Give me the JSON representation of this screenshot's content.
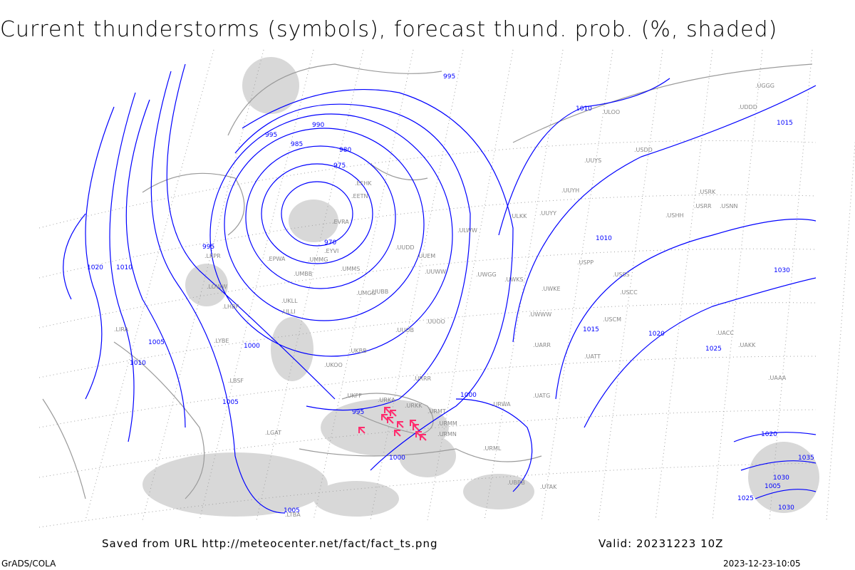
{
  "title": "Current thunderstorms (symbols), forecast thund. prob. (%, shaded)",
  "footer": {
    "saved_from": "Saved from URL http://meteocenter.net/fact/fact_ts.png",
    "valid": "Valid: 20231223 10Z",
    "credit": "GrADS/COLA",
    "timestamp": "2023-12-23-10:05"
  },
  "colors": {
    "isobar": "#0000ff",
    "coast": "#9a9a9a",
    "grid": "#a0a0a0",
    "shade": "#d8d8d8",
    "thunderstorm": "#ff2d6e"
  },
  "isobar_labels": [
    "970",
    "975",
    "980",
    "985",
    "990",
    "995",
    "995",
    "995",
    "1000",
    "1000",
    "1000",
    "1005",
    "1005",
    "1005",
    "1010",
    "1010",
    "1015",
    "1015",
    "1020",
    "1020",
    "1025",
    "1030",
    "1030",
    "995",
    "1000",
    "1005",
    "1010",
    "1010",
    "1020",
    "1025",
    "1030",
    "1035"
  ],
  "stations": [
    "ULOO",
    "UUYS",
    "UUYH",
    "UUYY",
    "ULKK",
    "ULWW",
    "UUEM",
    "UUWW",
    "UWGG",
    "UWKS",
    "UWKE",
    "UWWW",
    "USSS",
    "USCC",
    "USCM",
    "USPP",
    "UATT",
    "UARR",
    "UACC",
    "UAKK",
    "UAAA",
    "UATG",
    "URWA",
    "URMT",
    "URKK",
    "URKA",
    "URMM",
    "URMN",
    "URML",
    "UBBB",
    "UTAK",
    "USDD",
    "USNN",
    "USRR",
    "USRK",
    "USHH",
    "UGGG",
    "UDDD",
    "UKFF",
    "UKOO",
    "UKBB",
    "UKLL",
    "UMMS",
    "UMGG",
    "UMBB",
    "UMMG",
    "EVRA",
    "EETN",
    "EFHK",
    "EYVI",
    "EPWA",
    "LKPR",
    "LOWW",
    "LHBP",
    "LIRA",
    "LYBE",
    "LBSF",
    "LGAT",
    "LTBA",
    "ULLI",
    "UUOB",
    "UUOO",
    "URRR",
    "UUDD",
    "UUBB"
  ],
  "thunderstorm_count": 11
}
